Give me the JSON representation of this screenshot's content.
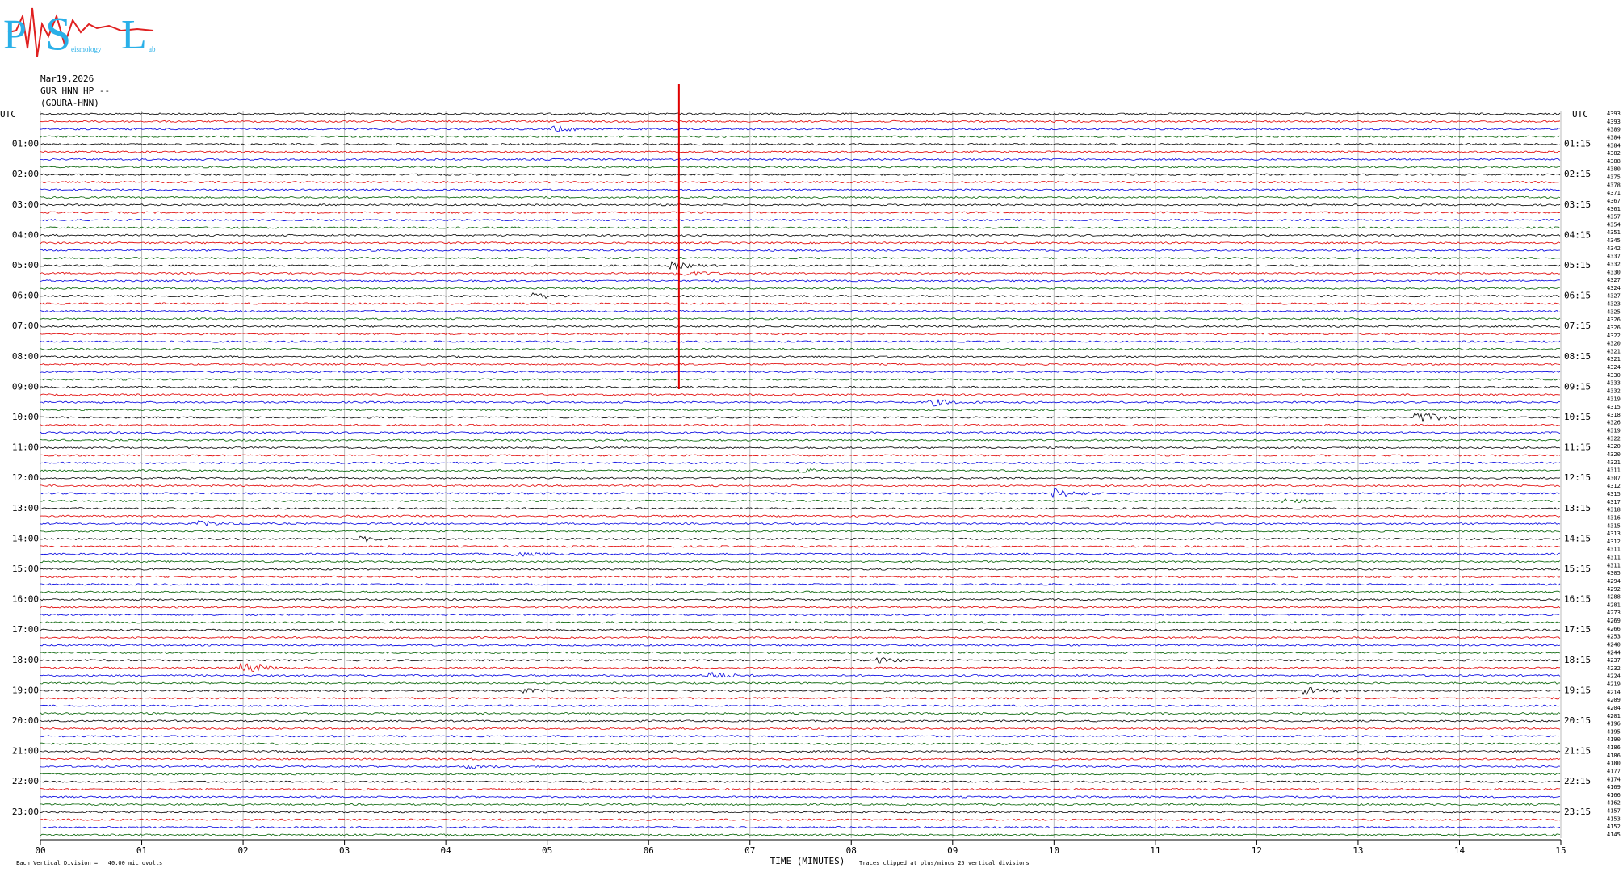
{
  "logo": {
    "p": "P",
    "s": "S",
    "l": "L",
    "sub1": "eismology",
    "sub2": "ab"
  },
  "header": {
    "date": "Mar19,2026",
    "station": "GUR HNN HP --",
    "name": "(GOURA-HNN)"
  },
  "left_axis": {
    "title": "UTC",
    "labels": [
      "01:00",
      "02:00",
      "03:00",
      "04:00",
      "05:00",
      "06:00",
      "07:00",
      "08:00",
      "09:00",
      "10:00",
      "11:00",
      "12:00",
      "13:00",
      "14:00",
      "15:00",
      "16:00",
      "17:00",
      "18:00",
      "19:00",
      "20:00",
      "21:00",
      "22:00",
      "23:00"
    ]
  },
  "right_axis": {
    "title": "UTC",
    "labels": [
      "01:15",
      "02:15",
      "03:15",
      "04:15",
      "05:15",
      "06:15",
      "07:15",
      "08:15",
      "09:15",
      "10:15",
      "11:15",
      "12:15",
      "13:15",
      "14:15",
      "15:15",
      "16:15",
      "17:15",
      "18:15",
      "19:15",
      "20:15",
      "21:15",
      "22:15",
      "23:15"
    ]
  },
  "row_counts": [
    "4393",
    "4393",
    "4389",
    "4384",
    "4384",
    "4382",
    "4388",
    "4380",
    "4375",
    "4378",
    "4371",
    "4367",
    "4361",
    "4357",
    "4354",
    "4351",
    "4345",
    "4342",
    "4337",
    "4332",
    "4330",
    "4327",
    "4324",
    "4327",
    "4323",
    "4325",
    "4326",
    "4326",
    "4322",
    "4320",
    "4321",
    "4321",
    "4324",
    "4330",
    "4333",
    "4332",
    "4319",
    "4315",
    "4318",
    "4326",
    "4319",
    "4322",
    "4320",
    "4320",
    "4321",
    "4311",
    "4307",
    "4312",
    "4315",
    "4317",
    "4318",
    "4316",
    "4315",
    "4313",
    "4312",
    "4311",
    "4311",
    "4311",
    "4305",
    "4294",
    "4292",
    "4288",
    "4281",
    "4273",
    "4269",
    "4266",
    "4253",
    "4240",
    "4244",
    "4237",
    "4232",
    "4224",
    "4219",
    "4214",
    "4209",
    "4204",
    "4201",
    "4196",
    "4195",
    "4190",
    "4186",
    "4186",
    "4180",
    "4177",
    "4174",
    "4169",
    "4166",
    "4162",
    "4157",
    "4153",
    "4152",
    "4145"
  ],
  "x_axis": {
    "title": "TIME (MINUTES)",
    "labels": [
      "00",
      "01",
      "02",
      "03",
      "04",
      "05",
      "06",
      "07",
      "08",
      "09",
      "10",
      "11",
      "12",
      "13",
      "14",
      "15"
    ]
  },
  "footer": {
    "scale": "Each Vertical Division =   40.00 microvolts",
    "clip": "Traces clipped at plus/minus 25 vertical divisions"
  }
}
